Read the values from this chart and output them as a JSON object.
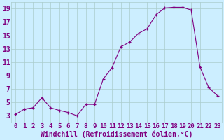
{
  "x": [
    0,
    1,
    2,
    3,
    4,
    5,
    6,
    7,
    8,
    9,
    10,
    11,
    12,
    13,
    14,
    15,
    16,
    17,
    18,
    19,
    20,
    21,
    22,
    23
  ],
  "y": [
    3.2,
    4.0,
    4.2,
    5.7,
    4.2,
    3.8,
    3.5,
    3.0,
    4.7,
    4.7,
    8.5,
    10.2,
    13.3,
    14.0,
    15.3,
    16.0,
    18.1,
    19.1,
    19.2,
    19.2,
    18.8,
    10.3,
    7.2,
    6.0
  ],
  "line_color": "#800080",
  "marker": "+",
  "marker_color": "#800080",
  "bg_color": "#cceeff",
  "grid_color": "#aacccc",
  "xlabel": "Windchill (Refroidissement éolien,°C)",
  "xlabel_color": "#800080",
  "tick_color": "#800080",
  "ylim": [
    2,
    20
  ],
  "xlim": [
    -0.5,
    23.5
  ],
  "yticks": [
    3,
    5,
    7,
    9,
    11,
    13,
    15,
    17,
    19
  ],
  "xticks": [
    0,
    1,
    2,
    3,
    4,
    5,
    6,
    7,
    8,
    9,
    10,
    11,
    12,
    13,
    14,
    15,
    16,
    17,
    18,
    19,
    20,
    21,
    22,
    23
  ],
  "xtick_labels": [
    "0",
    "1",
    "2",
    "3",
    "4",
    "5",
    "6",
    "7",
    "8",
    "9",
    "10",
    "11",
    "12",
    "13",
    "14",
    "15",
    "16",
    "17",
    "18",
    "19",
    "20",
    "21",
    "22",
    "23"
  ],
  "font_size": 6.5
}
